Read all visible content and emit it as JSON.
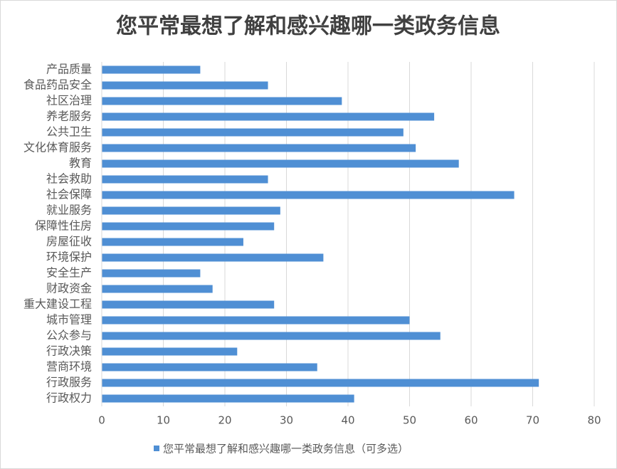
{
  "chart_data": {
    "type": "bar",
    "orientation": "horizontal",
    "title": "您平常最想了解和感兴趣哪一类政务信息",
    "categories": [
      "产品质量",
      "食品药品安全",
      "社区治理",
      "养老服务",
      "公共卫生",
      "文化体育服务",
      "教育",
      "社会救助",
      "社会保障",
      "就业服务",
      "保障性住房",
      "房屋征收",
      "环境保护",
      "安全生产",
      "财政资金",
      "重大建设工程",
      "城市管理",
      "公众参与",
      "行政决策",
      "营商环境",
      "行政服务",
      "行政权力"
    ],
    "series": [
      {
        "name": "您平常最想了解和感兴趣哪一类政务信息（可多选）",
        "color": "#4f8fd4",
        "values": [
          16,
          27,
          39,
          54,
          49,
          51,
          58,
          27,
          67,
          29,
          28,
          23,
          36,
          16,
          18,
          28,
          50,
          55,
          22,
          35,
          71,
          41
        ]
      }
    ],
    "xlim": [
      0,
      80
    ],
    "xticks": [
      0,
      10,
      20,
      30,
      40,
      50,
      60,
      70,
      80
    ],
    "grid": true,
    "legend": "bottom"
  }
}
